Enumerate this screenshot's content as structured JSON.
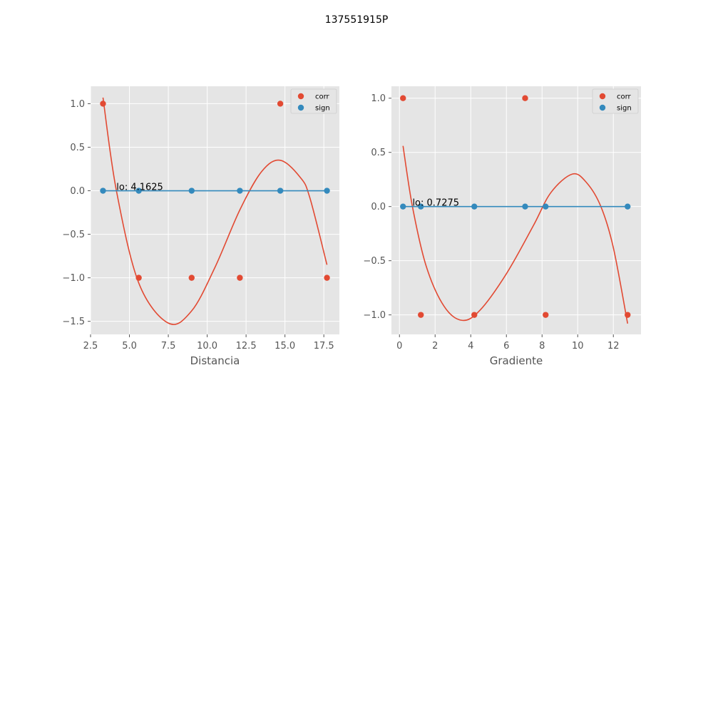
{
  "figure": {
    "suptitle": "137551915P",
    "colors": {
      "plot_background": "#e5e5e5",
      "grid": "#ffffff",
      "corr": "#e24a33",
      "sign": "#348abd",
      "tick_text": "#555555"
    }
  },
  "chart_data": [
    {
      "type": "scatter",
      "xlabel": "Distancia",
      "ylabel": "",
      "xlim": [
        2.5,
        18.5
      ],
      "ylim": [
        -1.65,
        1.2
      ],
      "xticks": [
        2.5,
        5.0,
        7.5,
        10.0,
        12.5,
        15.0,
        17.5
      ],
      "xtick_labels": [
        "2.5",
        "5.0",
        "7.5",
        "10.0",
        "12.5",
        "15.0",
        "17.5"
      ],
      "yticks": [
        1.0,
        0.5,
        0.0,
        -0.5,
        -1.0,
        -1.5
      ],
      "ytick_labels": [
        "1.0",
        "0.5",
        "0.0",
        "−0.5",
        "−1.0",
        "−1.5"
      ],
      "grid": true,
      "legend": {
        "position": "upper right",
        "entries": [
          "corr",
          "sign"
        ]
      },
      "series": [
        {
          "name": "corr",
          "x": [
            3.3,
            5.6,
            9.0,
            12.1,
            14.7,
            17.7
          ],
          "y": [
            1,
            -1,
            -1,
            -1,
            1,
            -1
          ]
        },
        {
          "name": "sign",
          "x": [
            3.3,
            5.6,
            9.0,
            12.1,
            14.7,
            17.7
          ],
          "y": [
            0,
            0,
            0,
            0,
            0,
            0
          ]
        }
      ],
      "fit_curve": {
        "series": "corr",
        "x": [
          3.3,
          4.1625,
          5.6,
          7.5,
          9.0,
          10.5,
          12.1,
          13.5,
          14.7,
          16.0,
          16.6,
          17.7
        ],
        "y": [
          1.07,
          0.0,
          -1.06,
          -1.52,
          -1.38,
          -0.88,
          -0.22,
          0.22,
          0.35,
          0.15,
          -0.08,
          -0.85
        ]
      },
      "hline": {
        "series": "sign",
        "y": 0.0,
        "x_range": [
          3.3,
          17.7
        ]
      },
      "annotation": {
        "text": "lo: 4.1625",
        "x": 4.1625,
        "y": 0.0
      }
    },
    {
      "type": "scatter",
      "xlabel": "Gradiente",
      "ylabel": "",
      "xlim": [
        -0.45,
        13.55
      ],
      "ylim": [
        -1.18,
        1.11
      ],
      "xticks": [
        0,
        2,
        4,
        6,
        8,
        10,
        12
      ],
      "xtick_labels": [
        "0",
        "2",
        "4",
        "6",
        "8",
        "10",
        "12"
      ],
      "yticks": [
        1.0,
        0.5,
        0.0,
        -0.5,
        -1.0
      ],
      "ytick_labels": [
        "1.0",
        "0.5",
        "0.0",
        "−0.5",
        "−1.0"
      ],
      "grid": true,
      "legend": {
        "position": "upper right",
        "entries": [
          "corr",
          "sign"
        ]
      },
      "series": [
        {
          "name": "corr",
          "x": [
            0.2,
            1.2,
            4.2,
            7.05,
            8.2,
            12.8
          ],
          "y": [
            1,
            -1,
            -1,
            1,
            -1,
            -1
          ]
        },
        {
          "name": "sign",
          "x": [
            0.2,
            1.2,
            4.2,
            7.05,
            8.2,
            12.8
          ],
          "y": [
            0,
            0,
            0,
            0,
            0,
            0
          ]
        }
      ],
      "fit_curve": {
        "series": "corr",
        "x": [
          0.2,
          0.7275,
          1.5,
          2.5,
          3.5,
          4.5,
          6.0,
          7.5,
          8.5,
          9.7,
          10.5,
          11.3,
          12.0,
          12.8
        ],
        "y": [
          0.56,
          0.0,
          -0.55,
          -0.92,
          -1.05,
          -0.96,
          -0.62,
          -0.18,
          0.13,
          0.3,
          0.22,
          0.0,
          -0.38,
          -1.08
        ]
      },
      "hline": {
        "series": "sign",
        "y": 0.0,
        "x_range": [
          0.2,
          12.8
        ]
      },
      "annotation": {
        "text": "lo: 0.7275",
        "x": 0.7275,
        "y": 0.0
      }
    }
  ]
}
